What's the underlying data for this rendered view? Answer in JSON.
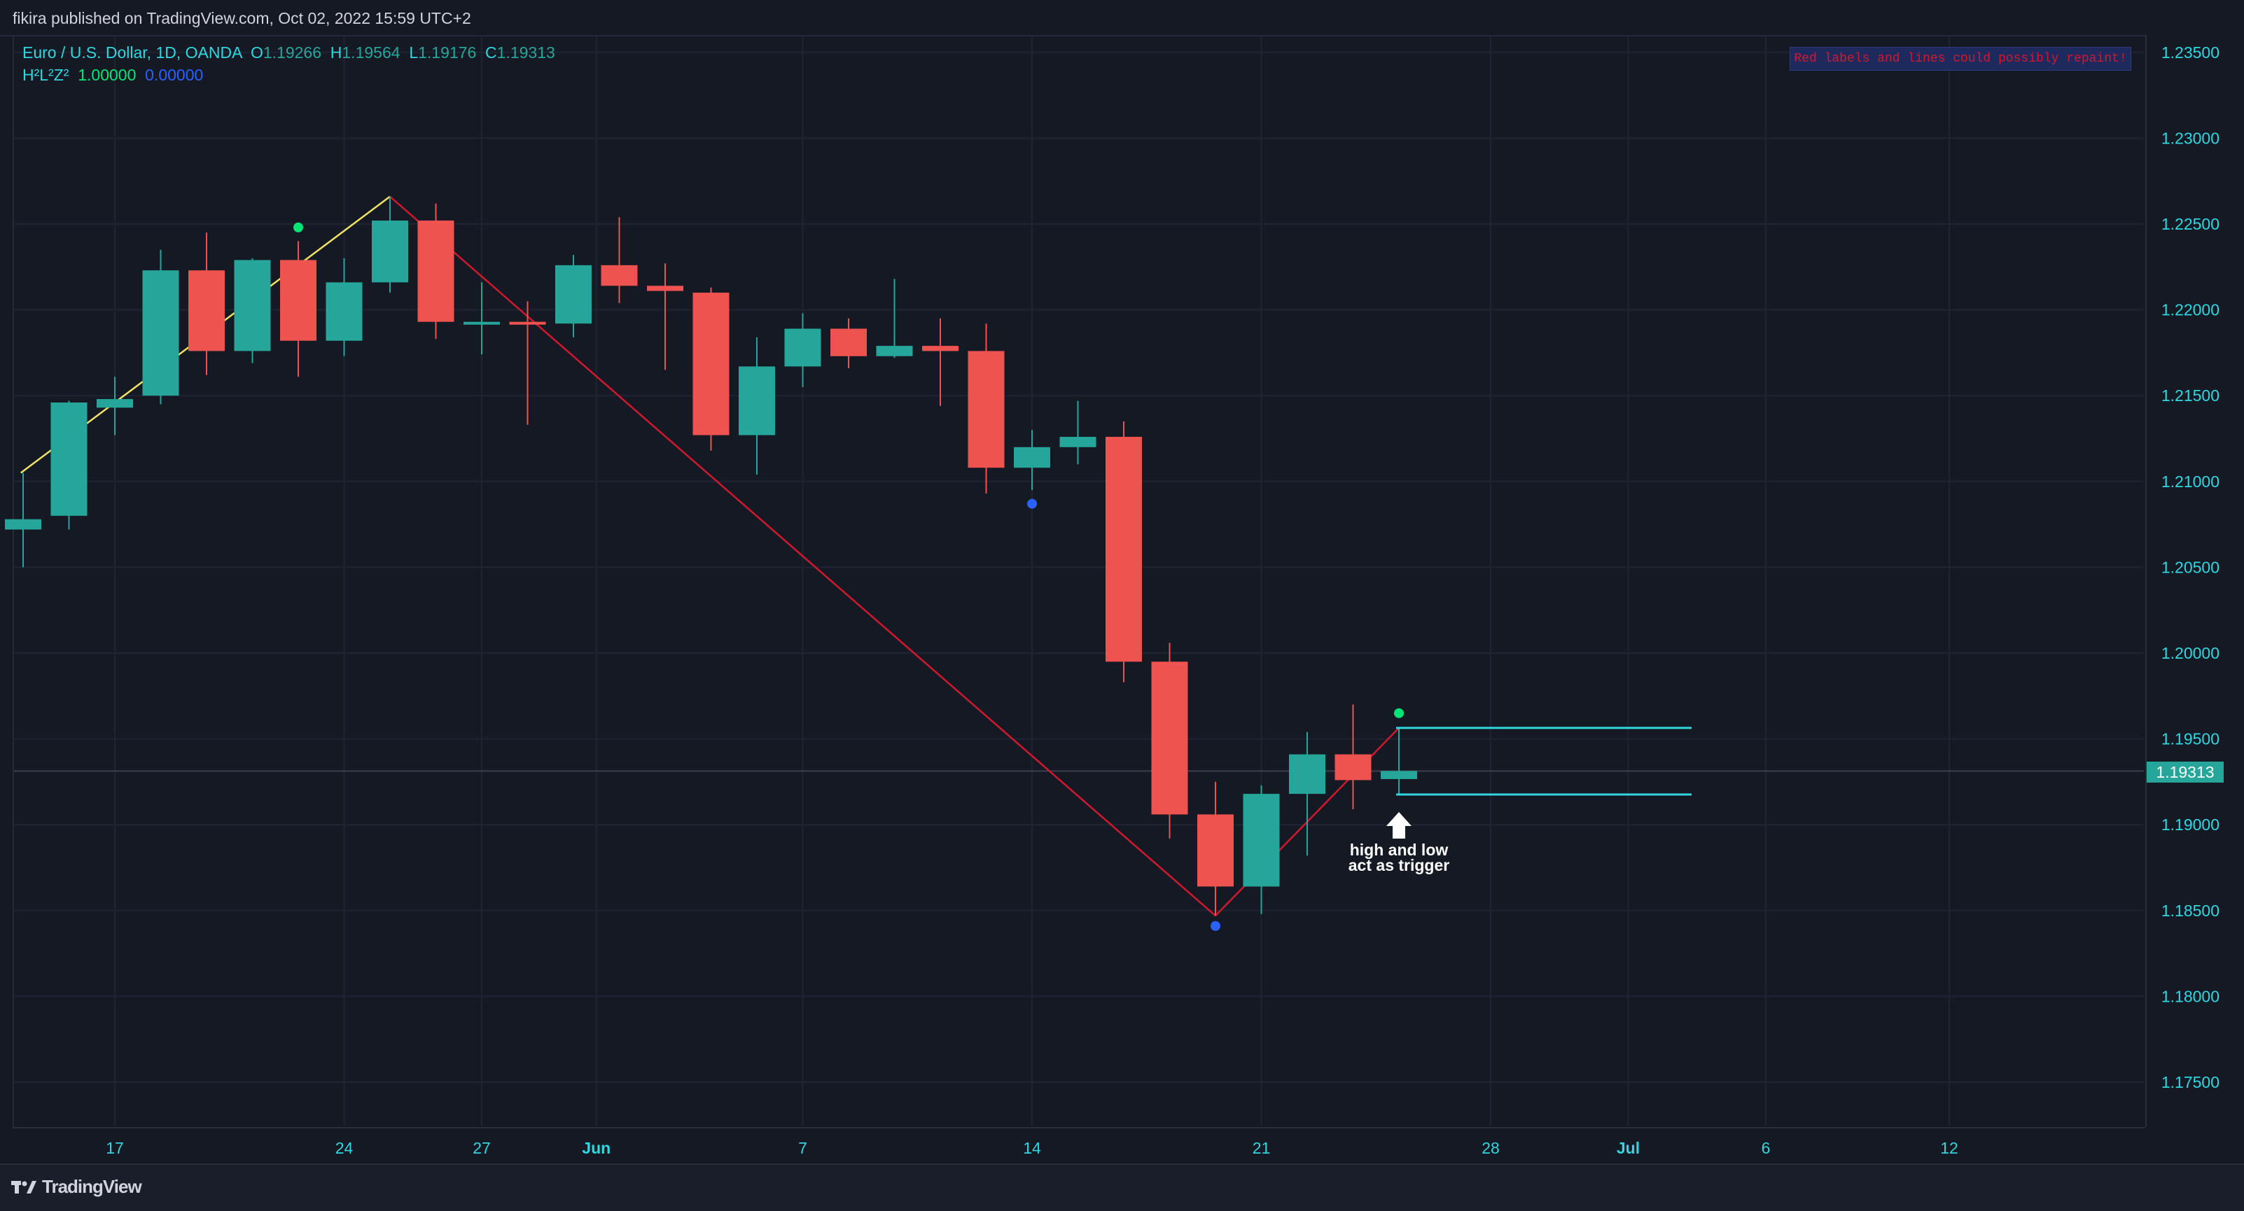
{
  "header": {
    "publisher_line": "fikira published on TradingView.com, Oct 02, 2022 15:59 UTC+2"
  },
  "legend": {
    "symbol": "Euro / U.S. Dollar, 1D, OANDA",
    "open_label": "O",
    "open": "1.19266",
    "high_label": "H",
    "high": "1.19564",
    "low_label": "L",
    "low": "1.19176",
    "close_label": "C",
    "close": "1.19313",
    "indicator_name": "H²L²Z²",
    "indicator_val1": "1.00000",
    "indicator_val2": "0.00000"
  },
  "warning_label": "Red labels and lines could possibly repaint!",
  "annotation": {
    "line1": "high and low",
    "line2": "act as trigger"
  },
  "current_price": "1.19313",
  "footer": {
    "brand": "TradingView"
  },
  "colors": {
    "up": "#26a69a",
    "down": "#ef5350",
    "zigzag_down": "#d0182e",
    "zigzag_up": "#f0e264",
    "trigger_line": "#2fd7e0",
    "dot_high": "#00e676",
    "dot_low": "#2962ff",
    "axis_text": "#2fd7e0"
  },
  "chart_data": {
    "type": "candlestick",
    "symbol": "EURUSD",
    "timeframe": "1D",
    "ylim": [
      1.172,
      1.2365
    ],
    "y_ticks": [
      "1.17500",
      "1.18000",
      "1.18500",
      "1.19000",
      "1.19500",
      "1.20000",
      "1.20500",
      "1.21000",
      "1.21500",
      "1.22000",
      "1.22500",
      "1.23000",
      "1.23500"
    ],
    "x_ticks": [
      "17",
      "24",
      "27",
      "Jun",
      "7",
      "14",
      "21",
      "28",
      "Jul",
      "6",
      "12"
    ],
    "candles": [
      {
        "o": 1.2072,
        "h": 1.2105,
        "l": 1.205,
        "c": 1.2078
      },
      {
        "o": 1.208,
        "h": 1.2147,
        "l": 1.2072,
        "c": 1.2146
      },
      {
        "o": 1.2143,
        "h": 1.2161,
        "l": 1.2127,
        "c": 1.2148
      },
      {
        "o": 1.215,
        "h": 1.2235,
        "l": 1.2145,
        "c": 1.2223
      },
      {
        "o": 1.2223,
        "h": 1.2245,
        "l": 1.2162,
        "c": 1.2176
      },
      {
        "o": 1.2176,
        "h": 1.223,
        "l": 1.2169,
        "c": 1.2229
      },
      {
        "o": 1.2229,
        "h": 1.224,
        "l": 1.2161,
        "c": 1.2182
      },
      {
        "o": 1.2182,
        "h": 1.223,
        "l": 1.2173,
        "c": 1.2216
      },
      {
        "o": 1.2216,
        "h": 1.2266,
        "l": 1.221,
        "c": 1.2252
      },
      {
        "o": 1.2252,
        "h": 1.2262,
        "l": 1.2183,
        "c": 1.2193
      },
      {
        "o": 1.2193,
        "h": 1.2216,
        "l": 1.2174,
        "c": 1.2193
      },
      {
        "o": 1.2193,
        "h": 1.2205,
        "l": 1.2133,
        "c": 1.2192
      },
      {
        "o": 1.2192,
        "h": 1.2232,
        "l": 1.2184,
        "c": 1.2226
      },
      {
        "o": 1.2226,
        "h": 1.2254,
        "l": 1.2204,
        "c": 1.2214
      },
      {
        "o": 1.2214,
        "h": 1.2227,
        "l": 1.2165,
        "c": 1.2211
      },
      {
        "o": 1.221,
        "h": 1.2213,
        "l": 1.2118,
        "c": 1.2127
      },
      {
        "o": 1.2127,
        "h": 1.2184,
        "l": 1.2104,
        "c": 1.2167
      },
      {
        "o": 1.2167,
        "h": 1.2198,
        "l": 1.2155,
        "c": 1.2189
      },
      {
        "o": 1.2189,
        "h": 1.2195,
        "l": 1.2166,
        "c": 1.2173
      },
      {
        "o": 1.2173,
        "h": 1.2218,
        "l": 1.2172,
        "c": 1.2179
      },
      {
        "o": 1.2179,
        "h": 1.2195,
        "l": 1.2144,
        "c": 1.2176
      },
      {
        "o": 1.2176,
        "h": 1.2192,
        "l": 1.2093,
        "c": 1.2108
      },
      {
        "o": 1.2108,
        "h": 1.213,
        "l": 1.2095,
        "c": 1.212
      },
      {
        "o": 1.212,
        "h": 1.2147,
        "l": 1.211,
        "c": 1.2126
      },
      {
        "o": 1.2126,
        "h": 1.2135,
        "l": 1.1983,
        "c": 1.1995
      },
      {
        "o": 1.1995,
        "h": 1.2006,
        "l": 1.1892,
        "c": 1.1906
      },
      {
        "o": 1.1906,
        "h": 1.1925,
        "l": 1.1847,
        "c": 1.1864
      },
      {
        "o": 1.1864,
        "h": 1.1923,
        "l": 1.1848,
        "c": 1.1918
      },
      {
        "o": 1.1918,
        "h": 1.1954,
        "l": 1.1882,
        "c": 1.1941
      },
      {
        "o": 1.1941,
        "h": 1.197,
        "l": 1.1909,
        "c": 1.1926
      },
      {
        "o": 1.19266,
        "h": 1.19564,
        "l": 1.19176,
        "c": 1.19313
      }
    ],
    "zigzag": [
      {
        "bar": -0.05,
        "price": 1.2105,
        "color": "up"
      },
      {
        "bar": 8,
        "price": 1.2266,
        "color": "up"
      },
      {
        "bar": 26,
        "price": 1.1847,
        "color": "down"
      },
      {
        "bar": 30,
        "price": 1.19564,
        "color": "down"
      }
    ],
    "markers": [
      {
        "bar": 6,
        "price": 1.2248,
        "kind": "high"
      },
      {
        "bar": 22,
        "price": 1.2087,
        "kind": "low"
      },
      {
        "bar": 26,
        "price": 1.1841,
        "kind": "low"
      },
      {
        "bar": 30,
        "price": 1.1965,
        "kind": "high"
      }
    ],
    "trigger_lines": [
      {
        "price": 1.19564,
        "from_bar": 30,
        "to_bar": 36
      },
      {
        "price": 1.19176,
        "from_bar": 30,
        "to_bar": 36
      }
    ],
    "current_price_line": 1.19313
  }
}
